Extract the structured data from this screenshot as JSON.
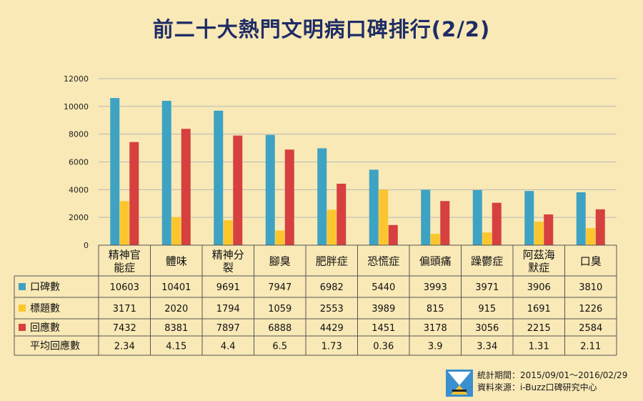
{
  "title": "前二十大熱門文明病口碑排行(2/2)",
  "chart_data": {
    "type": "bar",
    "categories": [
      [
        "精神官",
        "能症"
      ],
      [
        "體味"
      ],
      [
        "精神分",
        "裂"
      ],
      [
        "腳臭"
      ],
      [
        "肥胖症"
      ],
      [
        "恐慌症"
      ],
      [
        "偏頭痛"
      ],
      [
        "躁鬱症"
      ],
      [
        "阿茲海",
        "默症"
      ],
      [
        "口臭"
      ]
    ],
    "series": [
      {
        "name": "口碑數",
        "color": "#3ea3c2",
        "values": [
          10603,
          10401,
          9691,
          7947,
          6982,
          5440,
          3993,
          3971,
          3906,
          3810
        ]
      },
      {
        "name": "標題數",
        "color": "#fbc62d",
        "values": [
          3171,
          2020,
          1794,
          1059,
          2553,
          3989,
          815,
          915,
          1691,
          1226
        ]
      },
      {
        "name": "回應數",
        "color": "#d6403f",
        "values": [
          7432,
          8381,
          7897,
          6888,
          4429,
          1451,
          3178,
          3056,
          2215,
          2584
        ]
      }
    ],
    "extra_row": {
      "name": "平均回應數",
      "values": [
        "2.34",
        "4.15",
        "4.4",
        "6.5",
        "1.73",
        "0.36",
        "3.9",
        "3.34",
        "1.31",
        "2.11"
      ]
    },
    "ylim": [
      0,
      12000
    ],
    "yticks": [
      "0",
      "2000",
      "4000",
      "6000",
      "8000",
      "10000",
      "12000"
    ],
    "grid": true,
    "legend": "data-table"
  },
  "footer": {
    "period": "統計期間：2015/09/01～2016/02/29",
    "source": "資料來源：i-Buzz口碑研究中心"
  }
}
